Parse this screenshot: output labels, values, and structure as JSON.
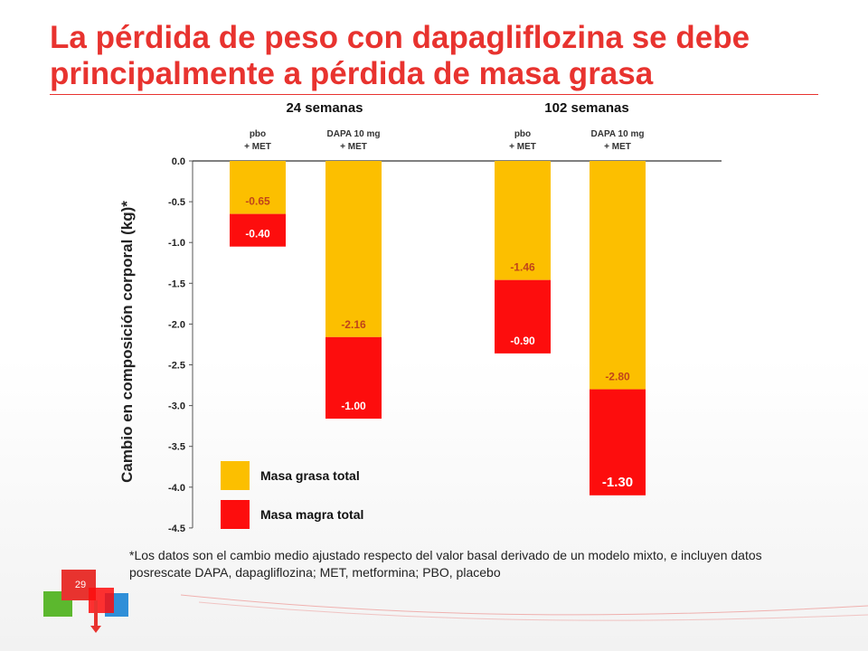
{
  "slide": {
    "title": "La pérdida de peso con dapagliflozina se debe principalmente a pérdida de masa grasa",
    "footnote": "*Los datos son el cambio medio ajustado respecto del valor basal derivado de un modelo mixto, e incluyen datos posrescate DAPA, dapagliflozina; MET, metformina; PBO, placebo",
    "page_number": "29"
  },
  "colors": {
    "title": "#e8332f",
    "fat": "#fcbf00",
    "lean": "#fd0d0d"
  },
  "chart_data": {
    "type": "bar",
    "stacked": true,
    "ylabel": "Cambio en composición corporal (kg)*",
    "ylim": [
      -4.5,
      0
    ],
    "yticks": [
      "0.0",
      "-0.5",
      "-1.0",
      "-1.5",
      "-2.0",
      "-2.5",
      "-3.0",
      "-3.5",
      "-4.0",
      "-4.5"
    ],
    "groups": [
      "24 semanas",
      "102 semanas"
    ],
    "categories": [
      {
        "line1": "pbo",
        "line2": "+ MET",
        "group": 0
      },
      {
        "line1": "DAPA 10 mg",
        "line2": "+ MET",
        "group": 0
      },
      {
        "line1": "pbo",
        "line2": "+ MET",
        "group": 1
      },
      {
        "line1": "DAPA 10 mg",
        "line2": "+ MET",
        "group": 1
      }
    ],
    "series": [
      {
        "name": "Masa grasa total",
        "values": [
          -0.65,
          -2.16,
          -1.46,
          -2.8
        ],
        "labels": [
          "-0.65",
          "-2.16",
          "-1.46",
          "-2.80"
        ]
      },
      {
        "name": "Masa magra total",
        "values": [
          -0.4,
          -1.0,
          -0.9,
          -1.3
        ],
        "labels": [
          "-0.40",
          "-1.00",
          "-0.90",
          "-1.30"
        ]
      }
    ],
    "legend_position": "bottom-left",
    "grid": false
  }
}
